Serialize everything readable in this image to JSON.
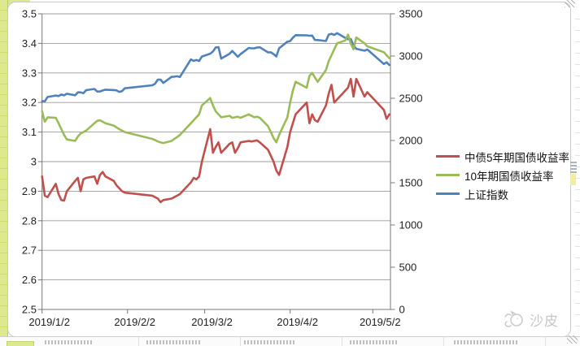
{
  "window": {
    "watermark_text": "沙皮"
  },
  "chart_data": {
    "type": "line",
    "title": "",
    "grid": true,
    "legend_position": "right",
    "x_axis": {
      "kind": "date",
      "tick_labels": [
        "2019/1/2",
        "2019/2/2",
        "2019/3/2",
        "2019/4/2",
        "2019/5/2"
      ],
      "tick_day_offsets": [
        0,
        31,
        59,
        90,
        120
      ],
      "axis_span_days": [
        0,
        126.5
      ]
    },
    "y_left": {
      "min": 2.5,
      "max": 3.5,
      "step": 0.1,
      "tick_labels": [
        "3.5",
        "3.4",
        "3.3",
        "3.2",
        "3.1",
        "3",
        "2.9",
        "2.8",
        "2.7",
        "2.6",
        "2.5"
      ]
    },
    "y_right": {
      "min": 0,
      "max": 3500,
      "step": 500,
      "tick_labels": [
        "3500",
        "3000",
        "2500",
        "2000",
        "1500",
        "1000",
        "500",
        "0"
      ]
    },
    "day_offsets": [
      0,
      1,
      2,
      5,
      6,
      7,
      8,
      9,
      12,
      13,
      14,
      15,
      16,
      19,
      20,
      21,
      22,
      23,
      26,
      27,
      28,
      29,
      30,
      40,
      41,
      42,
      43,
      44,
      47,
      48,
      49,
      50,
      51,
      54,
      55,
      56,
      57,
      58,
      61,
      62,
      63,
      64,
      65,
      68,
      69,
      70,
      71,
      72,
      75,
      76,
      77,
      78,
      79,
      82,
      83,
      84,
      85,
      86,
      89,
      90,
      91,
      92,
      96,
      97,
      98,
      99,
      100,
      103,
      104,
      105,
      106,
      107,
      110,
      111,
      112,
      113,
      114,
      117,
      118,
      124,
      125,
      126
    ],
    "series": [
      {
        "name": "中债5年期国债收益率",
        "color": "#C0504D",
        "axis": "left",
        "values": [
          2.95,
          2.885,
          2.88,
          2.925,
          2.89,
          2.87,
          2.868,
          2.9,
          2.935,
          2.945,
          2.9,
          2.94,
          2.945,
          2.95,
          2.925,
          2.955,
          2.965,
          2.95,
          2.935,
          2.92,
          2.91,
          2.9,
          2.895,
          2.885,
          2.88,
          2.875,
          2.863,
          2.87,
          2.875,
          2.88,
          2.885,
          2.89,
          2.9,
          2.93,
          2.945,
          2.94,
          2.95,
          3.0,
          3.11,
          3.03,
          3.05,
          3.065,
          3.03,
          3.06,
          3.065,
          3.03,
          3.045,
          3.065,
          3.07,
          3.068,
          3.07,
          3.072,
          3.065,
          3.04,
          3.02,
          3.0,
          2.97,
          2.955,
          3.05,
          3.1,
          3.13,
          3.16,
          3.2,
          3.13,
          3.16,
          3.14,
          3.135,
          3.19,
          3.23,
          3.26,
          3.2,
          3.21,
          3.24,
          3.25,
          3.28,
          3.22,
          3.28,
          3.22,
          3.235,
          3.175,
          3.145,
          3.16
        ]
      },
      {
        "name": "10年期国债收益率",
        "color": "#9BBB59",
        "axis": "left",
        "values": [
          3.17,
          3.135,
          3.15,
          3.148,
          3.13,
          3.11,
          3.09,
          3.075,
          3.07,
          3.085,
          3.095,
          3.1,
          3.105,
          3.13,
          3.138,
          3.14,
          3.135,
          3.13,
          3.122,
          3.116,
          3.11,
          3.105,
          3.1,
          3.077,
          3.073,
          3.068,
          3.065,
          3.063,
          3.07,
          3.077,
          3.083,
          3.09,
          3.1,
          3.13,
          3.14,
          3.15,
          3.16,
          3.19,
          3.215,
          3.19,
          3.17,
          3.16,
          3.15,
          3.155,
          3.148,
          3.15,
          3.152,
          3.148,
          3.16,
          3.155,
          3.15,
          3.152,
          3.148,
          3.12,
          3.1,
          3.08,
          3.065,
          3.09,
          3.15,
          3.2,
          3.24,
          3.27,
          3.25,
          3.29,
          3.3,
          3.285,
          3.27,
          3.31,
          3.34,
          3.36,
          3.38,
          3.4,
          3.41,
          3.43,
          3.4,
          3.38,
          3.42,
          3.4,
          3.39,
          3.37,
          3.36,
          3.35
        ]
      },
      {
        "name": "上证指数",
        "color": "#4F81BD",
        "axis": "right",
        "values": [
          2465,
          2464,
          2515,
          2533,
          2526,
          2544,
          2535,
          2554,
          2536,
          2570,
          2570,
          2560,
          2596,
          2611,
          2580,
          2581,
          2592,
          2602,
          2597,
          2594,
          2576,
          2585,
          2618,
          2654,
          2672,
          2721,
          2720,
          2682,
          2754,
          2756,
          2761,
          2752,
          2804,
          2961,
          2942,
          2954,
          2941,
          2994,
          3028,
          3054,
          3102,
          3106,
          2970,
          3027,
          3060,
          3027,
          2991,
          3022,
          3096,
          3091,
          3091,
          3101,
          3104,
          3043,
          3044,
          3023,
          2995,
          3091,
          3170,
          3177,
          3216,
          3247,
          3245,
          3240,
          3242,
          3190,
          3189,
          3178,
          3254,
          3263,
          3250,
          3271,
          3215,
          3199,
          3202,
          3124,
          3086,
          3063,
          3078,
          2906,
          2926,
          2894
        ]
      }
    ]
  }
}
